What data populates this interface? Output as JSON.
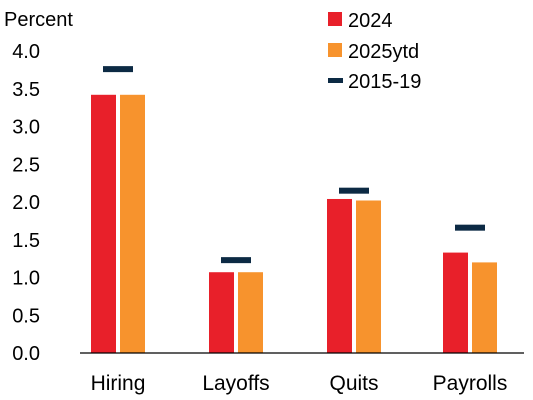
{
  "chart_data": {
    "type": "bar",
    "unit_label": "Percent",
    "categories": [
      "Hiring",
      "Layoffs",
      "Quits",
      "Payrolls"
    ],
    "series": [
      {
        "name": "2024",
        "kind": "bar",
        "color": "#e8202a",
        "values": [
          3.42,
          1.07,
          2.04,
          1.33
        ]
      },
      {
        "name": "2025ytd",
        "kind": "bar",
        "color": "#f7932d",
        "values": [
          3.42,
          1.07,
          2.02,
          1.2
        ]
      },
      {
        "name": "2015-19",
        "kind": "marker",
        "color": "#0c2a44",
        "values": [
          3.76,
          1.23,
          2.15,
          1.66
        ]
      }
    ],
    "ylim": [
      0,
      4.0
    ],
    "yticks": [
      "0.0",
      "0.5",
      "1.0",
      "1.5",
      "2.0",
      "2.5",
      "3.0",
      "3.5",
      "4.0"
    ],
    "grid": false,
    "legend_position": "top-right"
  }
}
